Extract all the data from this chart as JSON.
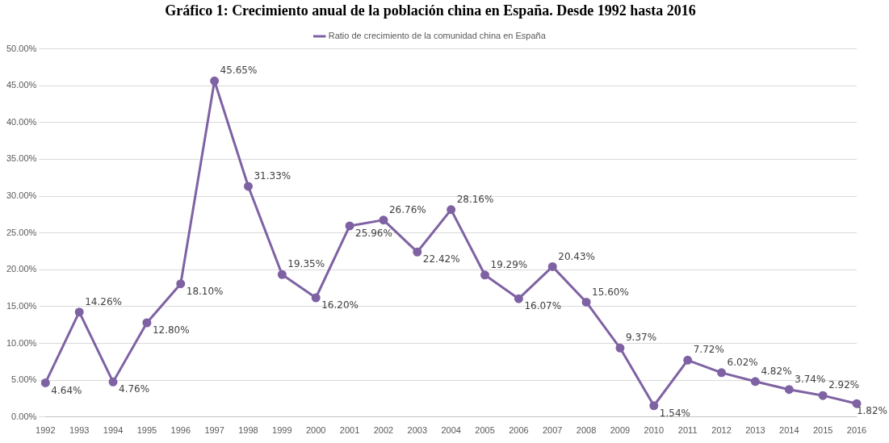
{
  "chart_data": {
    "type": "line",
    "title": "Gráfico 1: Crecimiento anual de la población china en España. Desde 1992 hasta 2016",
    "categories": [
      "1992",
      "1993",
      "1994",
      "1995",
      "1996",
      "1997",
      "1998",
      "1999",
      "2000",
      "2001",
      "2002",
      "2003",
      "2004",
      "2005",
      "2006",
      "2007",
      "2008",
      "2009",
      "2010",
      "2011",
      "2012",
      "2013",
      "2014",
      "2015",
      "2016"
    ],
    "series": [
      {
        "name": "Ratio de crecimiento de la comunidad china en España",
        "color": "#7e62a3",
        "values": [
          4.64,
          14.26,
          4.76,
          12.8,
          18.1,
          45.65,
          31.33,
          19.35,
          16.2,
          25.96,
          26.76,
          22.42,
          28.16,
          19.29,
          16.07,
          20.43,
          15.6,
          9.37,
          1.54,
          7.72,
          6.02,
          4.82,
          3.74,
          2.92,
          1.82
        ],
        "value_labels": [
          "4.64%",
          "14.26%",
          "4.76%",
          "12.80%",
          "18.10%",
          "45.65%",
          "31.33%",
          "19.35%",
          "16.20%",
          "25.96%",
          "26.76%",
          "22.42%",
          "28.16%",
          "19.29%",
          "16.07%",
          "20.43%",
          "15.60%",
          "9.37%",
          "1.54%",
          "7.72%",
          "6.02%",
          "4.82%",
          "3.74%",
          "2.92%",
          "1.82%"
        ]
      }
    ],
    "ylim": [
      0,
      50
    ],
    "yticks": [
      {
        "value": 0,
        "label": "0.00%"
      },
      {
        "value": 5,
        "label": "5.00%"
      },
      {
        "value": 10,
        "label": "10.00%"
      },
      {
        "value": 15,
        "label": "15.00%"
      },
      {
        "value": 20,
        "label": "20.00%"
      },
      {
        "value": 25,
        "label": "25.00%"
      },
      {
        "value": 30,
        "label": "30.00%"
      },
      {
        "value": 35,
        "label": "35.00%"
      },
      {
        "value": 40,
        "label": "40.00%"
      },
      {
        "value": 45,
        "label": "45.00%"
      },
      {
        "value": 50,
        "label": "50.00%"
      }
    ],
    "grid": "y",
    "legend": "top",
    "marker": "circle",
    "line_style": "solid"
  }
}
